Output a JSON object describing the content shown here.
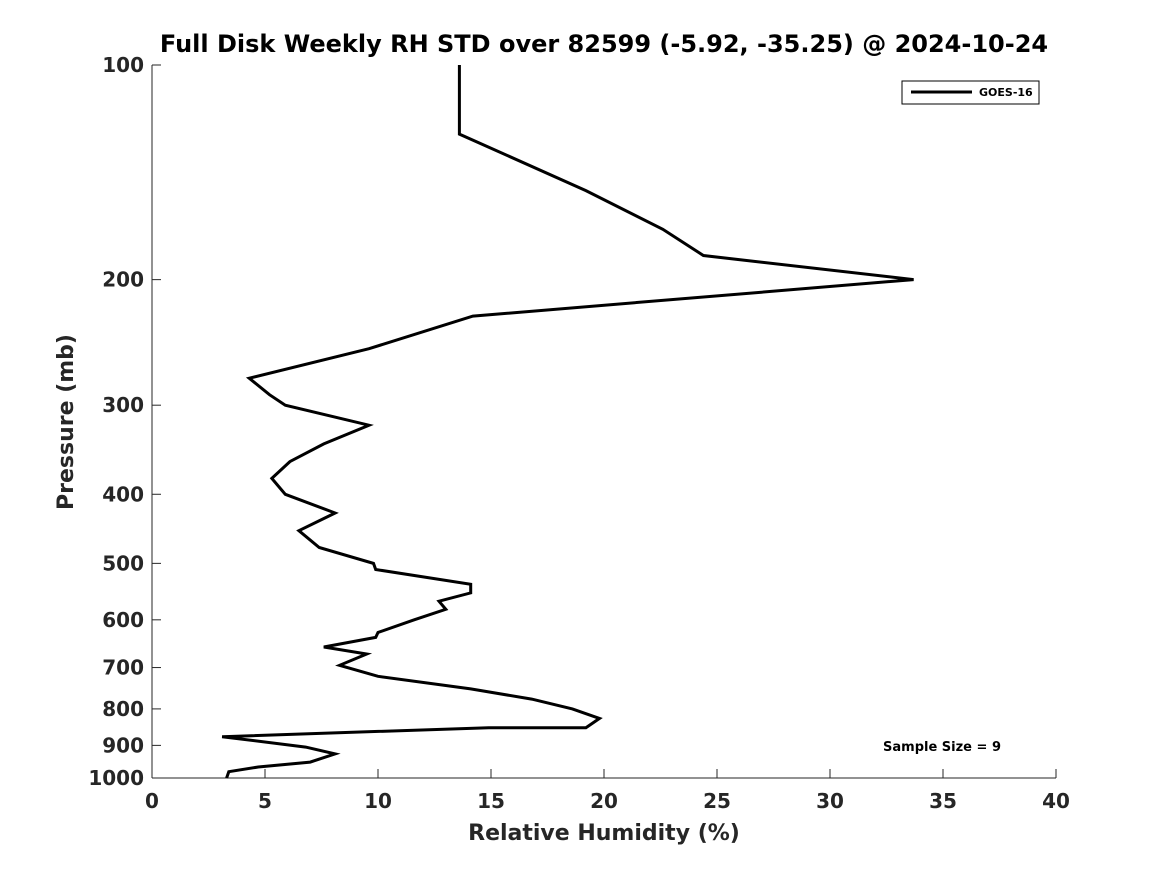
{
  "chart_data": {
    "type": "line",
    "title": "Full Disk Weekly RH STD over 82599 (-5.92, -35.25) @ 2024-10-24",
    "xlabel": "Relative Humidity (%)",
    "ylabel": "Pressure (mb)",
    "xlim": [
      0,
      40
    ],
    "ylim": [
      100,
      1000
    ],
    "yscale": "log",
    "y_reversed": true,
    "xticks": [
      0,
      5,
      10,
      15,
      20,
      25,
      30,
      35,
      40
    ],
    "yticks": [
      100,
      200,
      300,
      400,
      500,
      600,
      700,
      800,
      900,
      1000
    ],
    "grid": false,
    "legend_position": "top-right",
    "annotation": "Sample Size = 9",
    "series": [
      {
        "name": "GOES-16",
        "color": "#000000",
        "x": [
          13.6,
          13.6,
          19.2,
          22.6,
          24.4,
          33.7,
          14.2,
          9.6,
          4.3,
          5.2,
          5.9,
          9.6,
          7.6,
          6.1,
          5.3,
          5.9,
          8.1,
          6.5,
          7.4,
          9.8,
          9.9,
          14.1,
          14.1,
          12.7,
          13.0,
          11.6,
          10.0,
          9.9,
          7.6,
          9.5,
          8.3,
          10.0,
          14.1,
          16.8,
          18.6,
          19.8,
          19.2,
          14.9,
          3.1,
          6.8,
          8.1,
          7.0,
          4.7,
          3.4,
          3.3
        ],
        "y": [
          100,
          125,
          150,
          170,
          185,
          200,
          225,
          250,
          275,
          290,
          300,
          320,
          340,
          360,
          380,
          400,
          425,
          450,
          475,
          500,
          510,
          535,
          550,
          565,
          580,
          600,
          625,
          635,
          655,
          670,
          695,
          720,
          750,
          775,
          800,
          825,
          850,
          850,
          875,
          905,
          925,
          950,
          965,
          980,
          1000
        ]
      }
    ]
  }
}
